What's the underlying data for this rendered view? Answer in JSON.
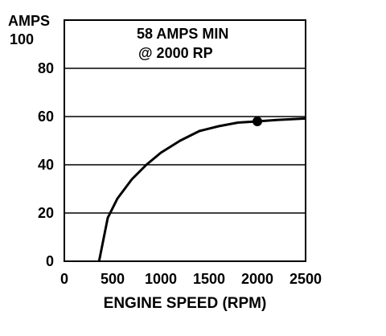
{
  "chart_data": {
    "type": "line",
    "title": "",
    "ylabel": "AMPS",
    "xlabel": "ENGINE SPEED (RPM)",
    "annotation": [
      "58 AMPS MIN",
      "@ 2000 RP"
    ],
    "xlim": [
      0,
      2500
    ],
    "ylim": [
      0,
      100
    ],
    "x_ticks": [
      "0",
      "500",
      "1000",
      "1500",
      "2000",
      "2500"
    ],
    "y_ticks": [
      "0",
      "20",
      "40",
      "60",
      "80",
      "100"
    ],
    "grid": true,
    "series": [
      {
        "x": [
          360,
          450,
          550,
          700,
          850,
          1000,
          1200,
          1400,
          1600,
          1800,
          2000,
          2200,
          2500
        ],
        "y": [
          0,
          18,
          26,
          34,
          40,
          45,
          50,
          54,
          56,
          57.5,
          58,
          58.6,
          59.2
        ]
      }
    ],
    "marked_point": {
      "x": 2000,
      "y": 58
    }
  }
}
